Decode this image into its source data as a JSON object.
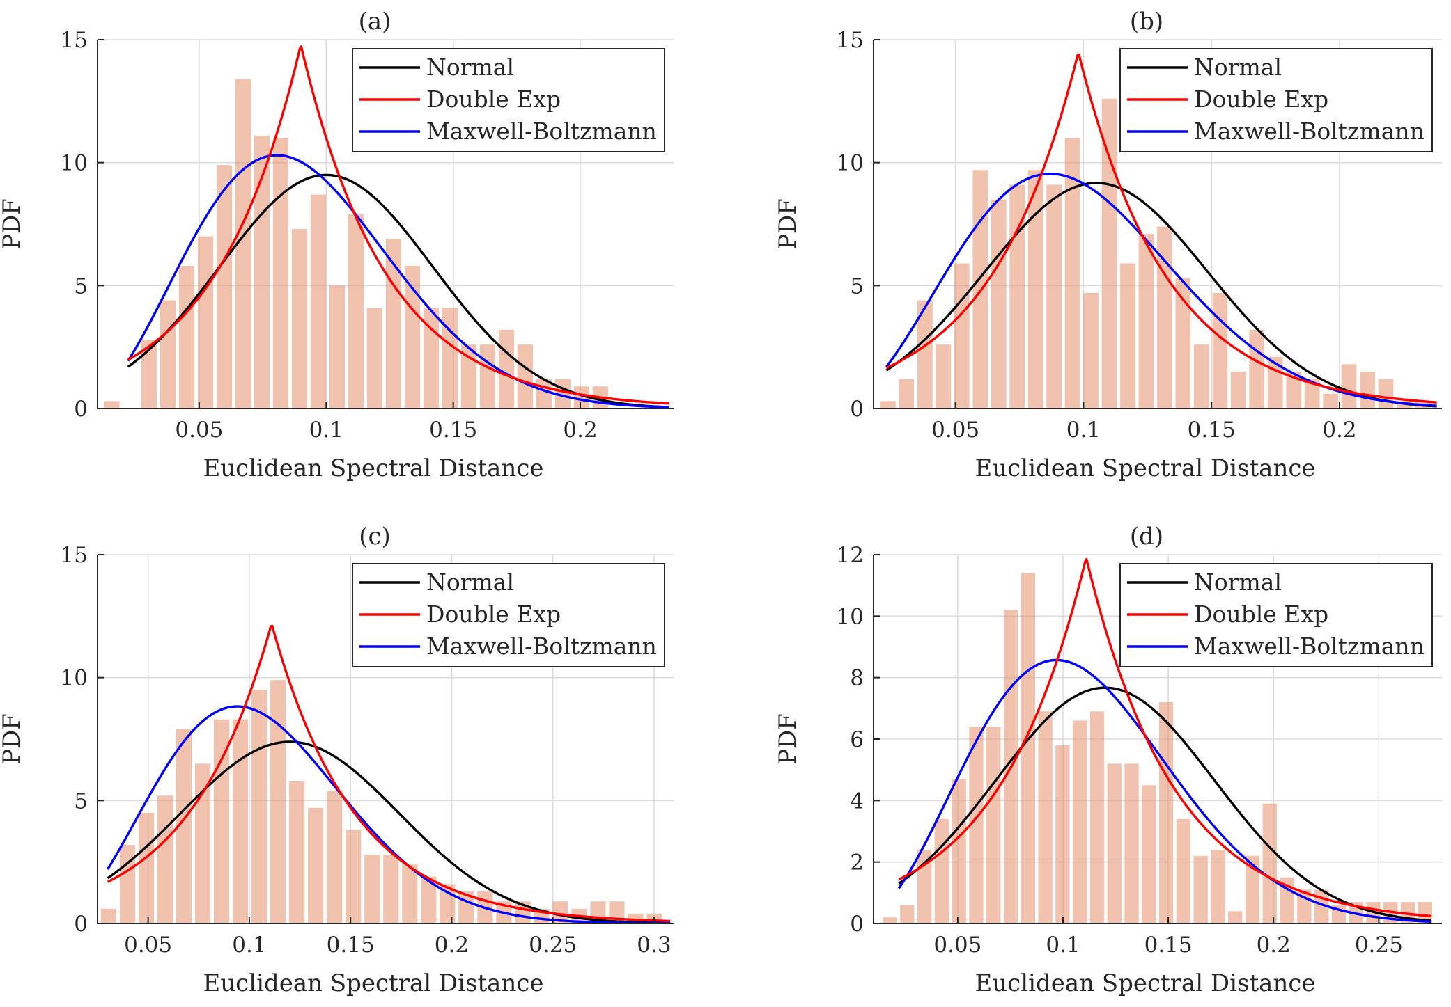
{
  "colors": {
    "histogram": "#e6906a",
    "normal": "#000000",
    "double_exp": "#ff0000",
    "maxwell_boltzmann": "#0000ff"
  },
  "chart_data": [
    {
      "type": "bar",
      "panel": "(a)",
      "title": "(a)",
      "xlabel": "Euclidean Spectral Distance",
      "ylabel": "PDF",
      "xlim": [
        0.01,
        0.237
      ],
      "ylim": [
        0,
        15
      ],
      "xticks": [
        0.05,
        0.1,
        0.15,
        0.2
      ],
      "xtick_labels": [
        "0.05",
        "0.1",
        "0.15",
        "0.2"
      ],
      "yticks": [
        0,
        5,
        10,
        15
      ],
      "ytick_labels": [
        "0",
        "5",
        "10",
        "15"
      ],
      "grid": true,
      "legend_position": "top-right",
      "legend": [
        "Normal",
        "Double Exp",
        "Maxwell-Boltzmann"
      ],
      "bin_width": 0.0074,
      "hist_x": [
        0.0156,
        0.0303,
        0.0377,
        0.0451,
        0.0525,
        0.0599,
        0.0673,
        0.0747,
        0.0821,
        0.0895,
        0.0969,
        0.1043,
        0.1117,
        0.1191,
        0.1265,
        0.1339,
        0.1413,
        0.1487,
        0.1561,
        0.1635,
        0.1709,
        0.1783,
        0.1857,
        0.1931,
        0.2005,
        0.2079
      ],
      "hist_values": [
        0.3,
        2.8,
        4.4,
        5.8,
        7.0,
        9.9,
        13.4,
        11.1,
        11.0,
        7.3,
        8.7,
        5.0,
        7.9,
        4.1,
        6.9,
        5.8,
        4.1,
        4.1,
        2.6,
        2.6,
        3.2,
        2.6,
        1.2,
        1.2,
        0.9,
        0.9
      ],
      "fits": {
        "normal": {
          "mean": 0.1,
          "sigma": 0.042,
          "x_start": 0.022,
          "x_end": 0.235
        },
        "double_exp": {
          "location": 0.09,
          "scale": 0.0338,
          "x_start": 0.022,
          "x_end": 0.235
        },
        "maxwell_boltzmann": {
          "a": 0.057,
          "x_start": 0.022,
          "x_end": 0.235
        }
      }
    },
    {
      "type": "bar",
      "panel": "(b)",
      "title": "(b)",
      "xlabel": "Euclidean Spectral Distance",
      "ylabel": "PDF",
      "xlim": [
        0.018,
        0.24
      ],
      "ylim": [
        0,
        15
      ],
      "xticks": [
        0.05,
        0.1,
        0.15,
        0.2
      ],
      "xtick_labels": [
        "0.05",
        "0.1",
        "0.15",
        "0.2"
      ],
      "yticks": [
        0,
        5,
        10,
        15
      ],
      "ytick_labels": [
        "0",
        "5",
        "10",
        "15"
      ],
      "grid": true,
      "legend_position": "top-right",
      "legend": [
        "Normal",
        "Double Exp",
        "Maxwell-Boltzmann"
      ],
      "bin_width": 0.0072,
      "hist_x": [
        0.0237,
        0.0309,
        0.0381,
        0.0453,
        0.0525,
        0.0597,
        0.0669,
        0.0741,
        0.0813,
        0.0885,
        0.0957,
        0.1029,
        0.1101,
        0.1173,
        0.1245,
        0.1317,
        0.1389,
        0.1461,
        0.1533,
        0.1605,
        0.1677,
        0.1749,
        0.1821,
        0.1893,
        0.1965,
        0.2037,
        0.2109,
        0.2181,
        0.2253,
        0.2325
      ],
      "hist_values": [
        0.3,
        1.2,
        4.4,
        2.6,
        5.9,
        9.7,
        8.5,
        9.1,
        9.7,
        9.1,
        11.0,
        4.7,
        12.6,
        5.9,
        7.1,
        7.4,
        5.3,
        2.6,
        4.7,
        1.5,
        3.2,
        2.1,
        1.5,
        1.2,
        0.6,
        1.8,
        1.5,
        1.2,
        0.3,
        0.3
      ],
      "fits": {
        "normal": {
          "mean": 0.105,
          "sigma": 0.0435,
          "x_start": 0.023,
          "x_end": 0.238
        },
        "double_exp": {
          "location": 0.098,
          "scale": 0.0345,
          "x_start": 0.023,
          "x_end": 0.238
        },
        "maxwell_boltzmann": {
          "a": 0.0615,
          "x_start": 0.023,
          "x_end": 0.238
        }
      }
    },
    {
      "type": "bar",
      "panel": "(c)",
      "title": "(c)",
      "xlabel": "Euclidean Spectral Distance",
      "ylabel": "PDF",
      "xlim": [
        0.025,
        0.31
      ],
      "ylim": [
        0,
        15
      ],
      "xticks": [
        0.05,
        0.1,
        0.15,
        0.2,
        0.25,
        0.3
      ],
      "xtick_labels": [
        "0.05",
        "0.1",
        "0.15",
        "0.2",
        "0.25",
        "0.3"
      ],
      "yticks": [
        0,
        5,
        10,
        15
      ],
      "ytick_labels": [
        "0",
        "5",
        "10",
        "15"
      ],
      "grid": true,
      "legend_position": "top-right",
      "legend": [
        "Normal",
        "Double Exp",
        "Maxwell-Boltzmann"
      ],
      "bin_width": 0.0093,
      "hist_x": [
        0.0305,
        0.0398,
        0.0491,
        0.0584,
        0.0677,
        0.077,
        0.0863,
        0.0956,
        0.1049,
        0.1142,
        0.1235,
        0.1328,
        0.1421,
        0.1514,
        0.1607,
        0.17,
        0.1793,
        0.1886,
        0.1979,
        0.2072,
        0.2165,
        0.2258,
        0.2351,
        0.2444,
        0.2537,
        0.263,
        0.2723,
        0.2816,
        0.2909,
        0.3002
      ],
      "hist_values": [
        0.6,
        3.2,
        4.5,
        5.2,
        7.9,
        6.5,
        8.3,
        8.3,
        9.5,
        9.9,
        5.8,
        4.7,
        5.4,
        3.8,
        2.8,
        2.8,
        2.4,
        1.9,
        1.6,
        1.3,
        1.3,
        0.9,
        0.9,
        0.6,
        0.9,
        0.6,
        0.9,
        0.9,
        0.4,
        0.4
      ],
      "fits": {
        "normal": {
          "mean": 0.12,
          "sigma": 0.054,
          "x_start": 0.03,
          "x_end": 0.308
        },
        "double_exp": {
          "location": 0.111,
          "scale": 0.041,
          "x_start": 0.03,
          "x_end": 0.308
        },
        "maxwell_boltzmann": {
          "a": 0.0665,
          "x_start": 0.03,
          "x_end": 0.308
        }
      }
    },
    {
      "type": "bar",
      "panel": "(d)",
      "title": "(d)",
      "xlabel": "Euclidean Spectral Distance",
      "ylabel": "PDF",
      "xlim": [
        0.01,
        0.28
      ],
      "ylim": [
        0,
        12
      ],
      "xticks": [
        0.05,
        0.1,
        0.15,
        0.2,
        0.25
      ],
      "xtick_labels": [
        "0.05",
        "0.1",
        "0.15",
        "0.2",
        "0.25"
      ],
      "yticks": [
        0,
        2,
        4,
        6,
        8,
        10,
        12
      ],
      "ytick_labels": [
        "0",
        "2",
        "4",
        "6",
        "8",
        "10",
        "12"
      ],
      "grid": true,
      "legend_position": "top-right",
      "legend": [
        "Normal",
        "Double Exp",
        "Maxwell-Boltzmann"
      ],
      "bin_width": 0.0082,
      "hist_x": [
        0.0178,
        0.026,
        0.0342,
        0.0424,
        0.0506,
        0.0588,
        0.067,
        0.0752,
        0.0834,
        0.0916,
        0.0998,
        0.108,
        0.1162,
        0.1244,
        0.1326,
        0.1408,
        0.149,
        0.1572,
        0.1654,
        0.1736,
        0.1818,
        0.19,
        0.1982,
        0.2064,
        0.2146,
        0.2228,
        0.231,
        0.2392,
        0.2474,
        0.2556,
        0.2638,
        0.272
      ],
      "hist_values": [
        0.2,
        0.6,
        2.4,
        3.4,
        4.7,
        6.4,
        6.4,
        10.2,
        11.4,
        6.9,
        5.8,
        6.6,
        6.9,
        5.2,
        5.2,
        4.5,
        7.2,
        3.4,
        2.2,
        2.4,
        0.4,
        2.2,
        3.9,
        1.5,
        1.1,
        1.1,
        0.6,
        0.7,
        0.7,
        0.7,
        0.7,
        0.7
      ],
      "fits": {
        "normal": {
          "mean": 0.12,
          "sigma": 0.052,
          "x_start": 0.022,
          "x_end": 0.275
        },
        "double_exp": {
          "location": 0.111,
          "scale": 0.042,
          "x_start": 0.022,
          "x_end": 0.275
        },
        "maxwell_boltzmann": {
          "a": 0.0685,
          "x_start": 0.022,
          "x_end": 0.275
        }
      }
    }
  ]
}
